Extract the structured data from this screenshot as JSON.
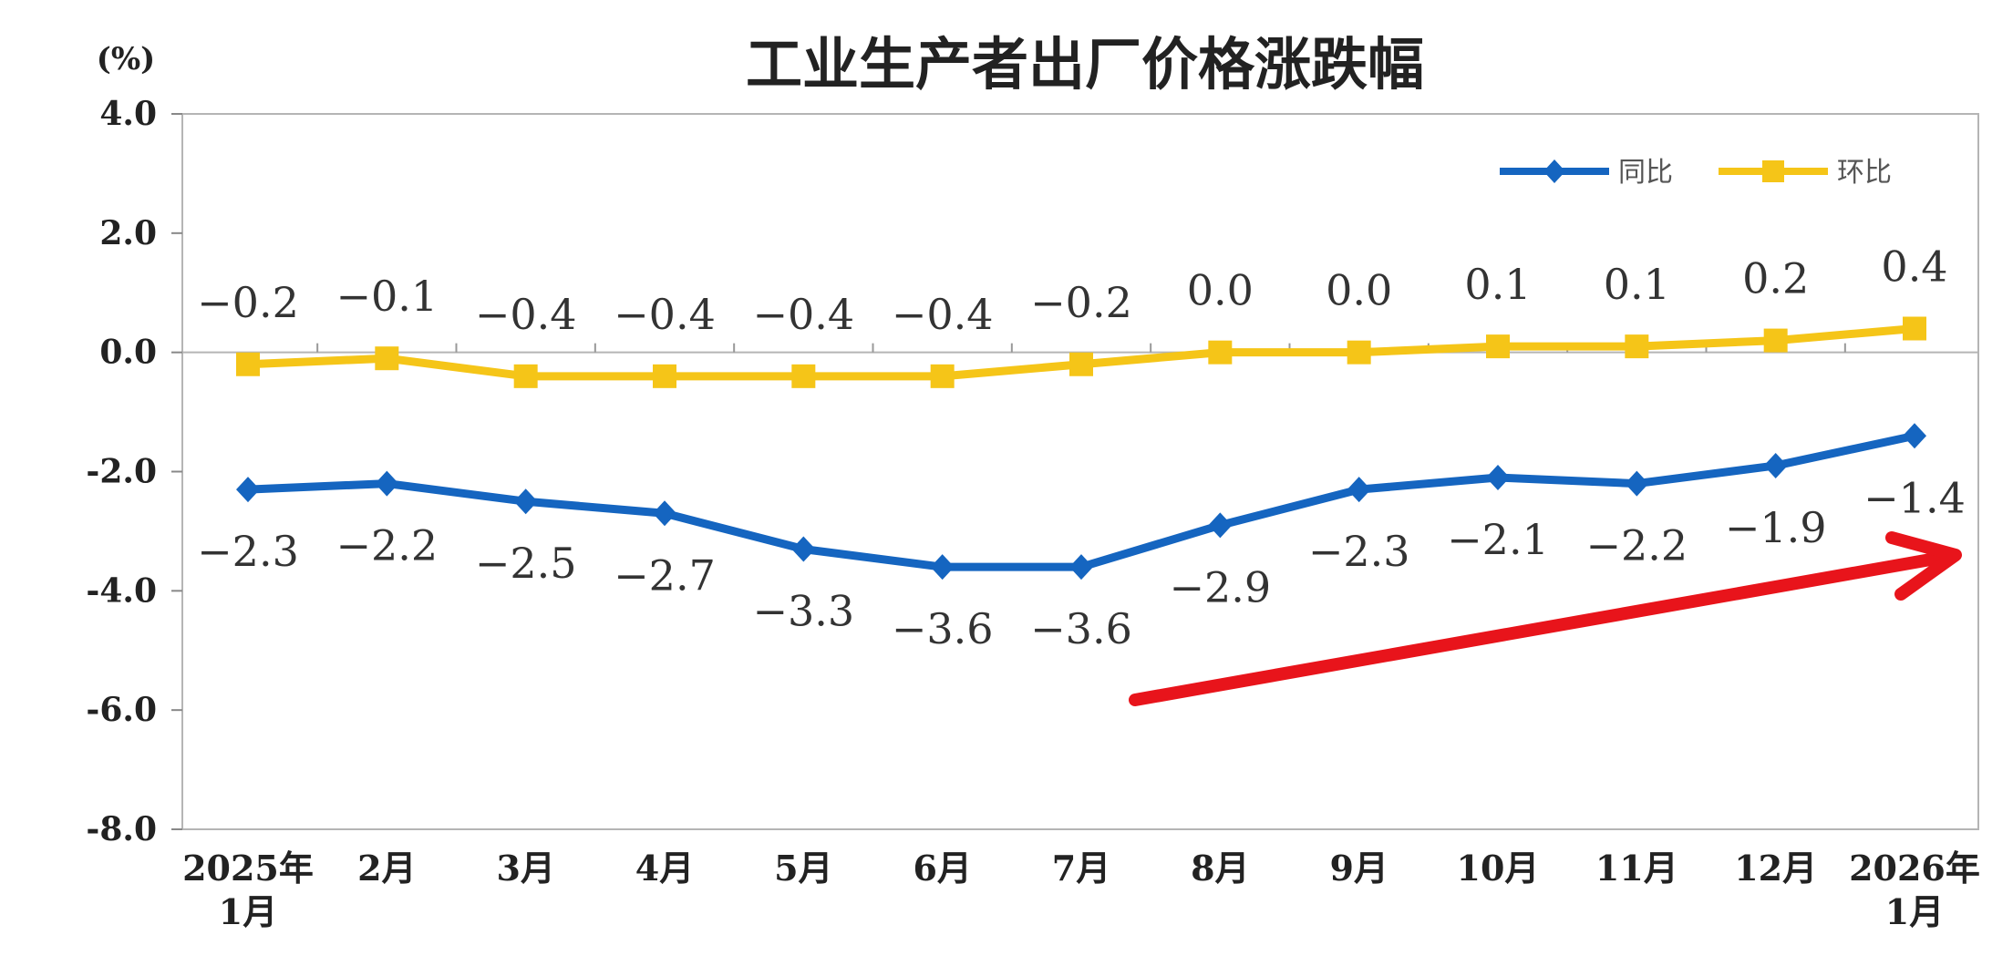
{
  "chart_data": {
    "type": "line",
    "title": "工业生产者出厂价格涨跌幅",
    "y_unit": "(%)",
    "ylim": [
      -8,
      4
    ],
    "yticks": [
      4,
      2,
      0,
      -2,
      -4,
      -6,
      -8
    ],
    "ytick_labels": [
      "4.0",
      "2.0",
      "0.0",
      "-2.0",
      "-4.0",
      "-6.0",
      "-8.0"
    ],
    "categories": [
      [
        "2025年",
        "1月"
      ],
      [
        "2月"
      ],
      [
        "3月"
      ],
      [
        "4月"
      ],
      [
        "5月"
      ],
      [
        "6月"
      ],
      [
        "7月"
      ],
      [
        "8月"
      ],
      [
        "9月"
      ],
      [
        "10月"
      ],
      [
        "11月"
      ],
      [
        "12月"
      ],
      [
        "2026年",
        "1月"
      ]
    ],
    "grid": false,
    "legend_position": "top-right",
    "series": [
      {
        "name": "同比",
        "color": "#1565C0",
        "marker": "diamond",
        "values": [
          -2.3,
          -2.2,
          -2.5,
          -2.7,
          -3.3,
          -3.6,
          -3.6,
          -2.9,
          -2.3,
          -2.1,
          -2.2,
          -1.9,
          -1.4
        ],
        "labels": [
          "−2.3",
          "−2.2",
          "−2.5",
          "−2.7",
          "−3.3",
          "−3.6",
          "−3.6",
          "−2.9",
          "−2.3",
          "−2.1",
          "−2.2",
          "−1.9",
          "−1.4"
        ]
      },
      {
        "name": "环比",
        "color": "#F5C518",
        "marker": "square",
        "values": [
          -0.2,
          -0.1,
          -0.4,
          -0.4,
          -0.4,
          -0.4,
          -0.2,
          0.0,
          0.0,
          0.1,
          0.1,
          0.2,
          0.4
        ],
        "labels": [
          "−0.2",
          "−0.1",
          "−0.4",
          "−0.4",
          "−0.4",
          "−0.4",
          "−0.2",
          "0.0",
          "0.0",
          "0.1",
          "0.1",
          "0.2",
          "0.4"
        ]
      }
    ],
    "annotation": {
      "type": "arrow",
      "color": "#E8141B",
      "description_from": "below 8月 toward right edge near 2026年1月"
    }
  }
}
